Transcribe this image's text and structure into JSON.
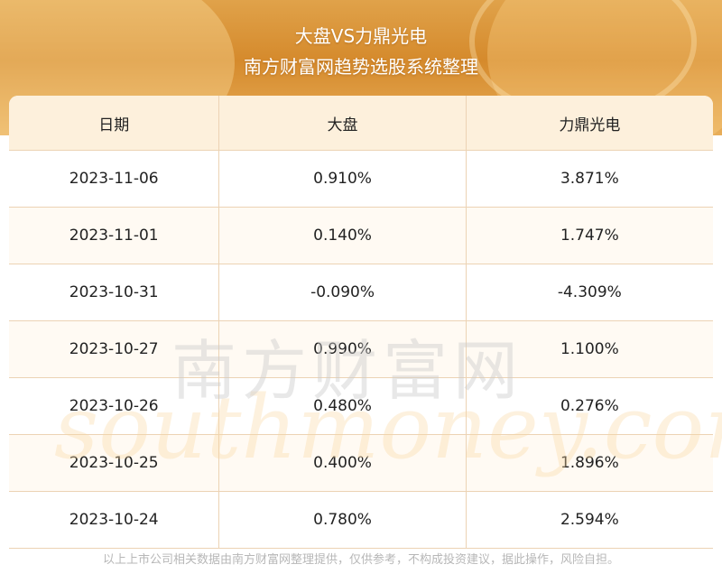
{
  "header": {
    "title": "大盘VS力鼎光电",
    "subtitle": "南方财富网趋势选股系统整理"
  },
  "table": {
    "columns": [
      "日期",
      "大盘",
      "力鼎光电"
    ],
    "rows": [
      [
        "2023-11-06",
        "0.910%",
        "3.871%"
      ],
      [
        "2023-11-01",
        "0.140%",
        "1.747%"
      ],
      [
        "2023-10-31",
        "-0.090%",
        "-4.309%"
      ],
      [
        "2023-10-27",
        "0.990%",
        "1.100%"
      ],
      [
        "2023-10-26",
        "0.480%",
        "0.276%"
      ],
      [
        "2023-10-25",
        "0.400%",
        "1.896%"
      ],
      [
        "2023-10-24",
        "0.780%",
        "2.594%"
      ]
    ]
  },
  "watermark": {
    "cn": "南方财富网",
    "en": "southmoney.com"
  },
  "footer": {
    "disclaimer": "以上上市公司相关数据由南方财富网整理提供，仅供参考，不构成投资建议，据此操作，风险自担。"
  },
  "colors": {
    "banner": "#d58a2c",
    "header_row": "#fdf0dc",
    "border": "#ecd3b4"
  }
}
